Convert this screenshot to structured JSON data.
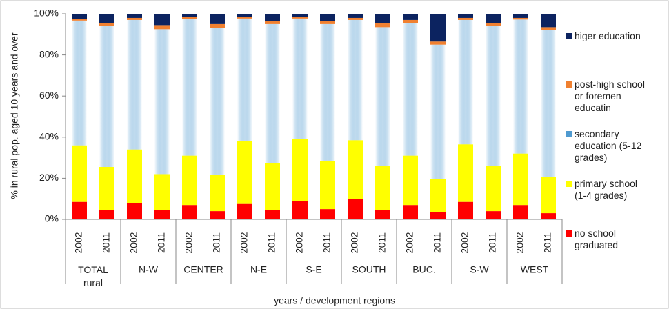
{
  "chart_data": {
    "type": "bar",
    "stacked": true,
    "y_label": "% in rural pop. aged 10 years and over",
    "x_label": "years / development regions",
    "categories": [
      "2002",
      "2011",
      "2002",
      "2011",
      "2002",
      "2011",
      "2002",
      "2011",
      "2002",
      "2011",
      "2002",
      "2011",
      "2002",
      "2011",
      "2002",
      "2011",
      "2002",
      "2011"
    ],
    "groups": [
      "TOTAL rural",
      "N-W",
      "CENTER",
      "N-E",
      "S-E",
      "SOUTH",
      "BUC.",
      "S-W",
      "WEST"
    ],
    "ylim": [
      0,
      100
    ],
    "yticks": [
      {
        "value": 0,
        "label": "0%"
      },
      {
        "value": 20,
        "label": "20%"
      },
      {
        "value": 40,
        "label": "40%"
      },
      {
        "value": 60,
        "label": "60%"
      },
      {
        "value": 80,
        "label": "80%"
      },
      {
        "value": 100,
        "label": "100%"
      }
    ],
    "series": [
      {
        "name": "no school graduated",
        "color": "#ff0000",
        "values": [
          8.5,
          4.5,
          8,
          4.5,
          7,
          4,
          7.5,
          4.5,
          9,
          5,
          10,
          4.5,
          7,
          3.5,
          8.5,
          4,
          7,
          3
        ]
      },
      {
        "name": "primary school (1-4 grades)",
        "color": "#ffff00",
        "values": [
          27.5,
          21,
          26,
          17.5,
          24,
          17.5,
          30.5,
          23,
          30,
          23.5,
          28.5,
          21.5,
          24,
          16,
          28,
          22,
          25,
          17.5
        ]
      },
      {
        "name": "secondary education (5-12 grades)",
        "color": "#4f9ad0",
        "values": [
          60.7,
          68.5,
          63,
          70.5,
          66.5,
          71.5,
          59.7,
          67.5,
          58.7,
          66.5,
          58.5,
          67.5,
          64.5,
          65.5,
          60.5,
          68,
          65.2,
          71.5
        ]
      },
      {
        "name": "post-high school or foremen educatin",
        "color": "#f08030",
        "values": [
          0.8,
          1.5,
          1,
          2,
          1,
          2,
          0.8,
          1.5,
          0.8,
          1.5,
          1,
          2,
          1.5,
          1.5,
          1,
          1.5,
          0.8,
          1.5
        ]
      },
      {
        "name": "higer education",
        "color": "#0c2360",
        "values": [
          2.5,
          4.5,
          2,
          5.5,
          1.5,
          5,
          1.5,
          3.5,
          1.5,
          3.5,
          2,
          4.5,
          3,
          13.5,
          2,
          4.5,
          2,
          6.5
        ]
      }
    ]
  }
}
